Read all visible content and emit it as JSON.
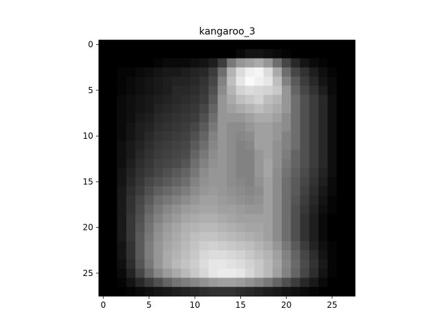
{
  "chart_data": {
    "type": "heatmap",
    "title": "kangaroo_3",
    "xlabel": "",
    "ylabel": "",
    "colormap": "gray",
    "grid": false,
    "rows": 28,
    "cols": 28,
    "x_ticks": [
      0,
      5,
      10,
      15,
      20,
      25
    ],
    "y_ticks": [
      0,
      5,
      10,
      15,
      20,
      25
    ],
    "x_tick_labels": [
      "0",
      "5",
      "10",
      "15",
      "20",
      "25"
    ],
    "y_tick_labels": [
      "0",
      "5",
      "10",
      "15",
      "20",
      "25"
    ],
    "xlim": [
      -0.5,
      27.5
    ],
    "ylim": [
      27.5,
      -0.5
    ],
    "value_range": [
      0,
      255
    ],
    "values": [
      [
        0,
        0,
        0,
        0,
        0,
        0,
        0,
        0,
        0,
        0,
        0,
        0,
        0,
        0,
        0,
        0,
        0,
        0,
        0,
        0,
        0,
        0,
        0,
        0,
        0,
        0,
        0,
        0
      ],
      [
        0,
        0,
        0,
        0,
        0,
        0,
        0,
        0,
        0,
        0,
        0,
        0,
        0,
        0,
        0,
        10,
        20,
        20,
        15,
        10,
        5,
        0,
        0,
        0,
        0,
        0,
        0,
        0
      ],
      [
        0,
        0,
        0,
        0,
        0,
        0,
        5,
        10,
        10,
        10,
        15,
        20,
        30,
        60,
        120,
        150,
        160,
        170,
        150,
        110,
        70,
        40,
        20,
        10,
        5,
        0,
        0,
        0
      ],
      [
        0,
        0,
        5,
        5,
        10,
        15,
        20,
        25,
        25,
        30,
        35,
        40,
        60,
        110,
        180,
        220,
        240,
        245,
        220,
        170,
        110,
        70,
        50,
        30,
        15,
        5,
        0,
        0
      ],
      [
        0,
        0,
        5,
        10,
        15,
        20,
        25,
        30,
        35,
        35,
        40,
        50,
        70,
        130,
        190,
        230,
        250,
        240,
        230,
        190,
        130,
        90,
        60,
        40,
        20,
        10,
        0,
        0
      ],
      [
        0,
        0,
        5,
        10,
        15,
        20,
        25,
        30,
        40,
        40,
        45,
        55,
        80,
        140,
        180,
        210,
        220,
        215,
        210,
        200,
        150,
        100,
        70,
        50,
        30,
        10,
        0,
        0
      ],
      [
        0,
        0,
        10,
        15,
        20,
        25,
        30,
        35,
        40,
        45,
        50,
        60,
        90,
        150,
        170,
        190,
        200,
        210,
        190,
        180,
        150,
        110,
        80,
        60,
        40,
        15,
        0,
        0
      ],
      [
        0,
        0,
        10,
        15,
        20,
        25,
        35,
        40,
        45,
        50,
        55,
        70,
        100,
        150,
        160,
        170,
        180,
        190,
        180,
        170,
        150,
        110,
        80,
        60,
        40,
        15,
        0,
        0
      ],
      [
        0,
        0,
        10,
        15,
        25,
        30,
        40,
        45,
        50,
        55,
        60,
        80,
        110,
        150,
        150,
        150,
        160,
        170,
        170,
        160,
        140,
        110,
        80,
        60,
        40,
        15,
        0,
        0
      ],
      [
        0,
        0,
        10,
        20,
        30,
        35,
        45,
        50,
        55,
        60,
        70,
        90,
        120,
        150,
        140,
        140,
        150,
        160,
        160,
        150,
        140,
        110,
        80,
        60,
        40,
        15,
        0,
        0
      ],
      [
        0,
        0,
        10,
        20,
        30,
        40,
        50,
        55,
        60,
        65,
        80,
        100,
        130,
        150,
        140,
        135,
        140,
        160,
        160,
        150,
        130,
        110,
        80,
        60,
        40,
        15,
        0,
        0
      ],
      [
        0,
        0,
        15,
        25,
        35,
        45,
        55,
        60,
        65,
        70,
        90,
        110,
        135,
        150,
        140,
        130,
        135,
        160,
        160,
        145,
        130,
        110,
        80,
        60,
        40,
        15,
        0,
        0
      ],
      [
        0,
        0,
        15,
        25,
        40,
        50,
        60,
        65,
        70,
        75,
        100,
        120,
        140,
        150,
        140,
        130,
        130,
        150,
        160,
        145,
        125,
        100,
        80,
        60,
        40,
        15,
        0,
        0
      ],
      [
        0,
        0,
        15,
        30,
        45,
        55,
        65,
        70,
        75,
        85,
        110,
        130,
        145,
        150,
        140,
        130,
        130,
        150,
        165,
        145,
        120,
        100,
        80,
        60,
        40,
        15,
        0,
        0
      ],
      [
        0,
        0,
        20,
        35,
        50,
        60,
        70,
        80,
        90,
        100,
        120,
        140,
        150,
        150,
        140,
        130,
        130,
        150,
        165,
        140,
        115,
        95,
        75,
        55,
        35,
        15,
        0,
        0
      ],
      [
        0,
        0,
        20,
        40,
        55,
        70,
        80,
        90,
        100,
        110,
        130,
        145,
        150,
        150,
        140,
        135,
        130,
        145,
        160,
        140,
        110,
        90,
        70,
        50,
        30,
        10,
        0,
        0
      ],
      [
        0,
        0,
        25,
        45,
        60,
        80,
        95,
        105,
        115,
        125,
        140,
        150,
        155,
        150,
        145,
        140,
        135,
        140,
        160,
        140,
        110,
        90,
        65,
        45,
        25,
        10,
        0,
        0
      ],
      [
        0,
        0,
        25,
        50,
        70,
        90,
        110,
        120,
        130,
        140,
        150,
        160,
        160,
        155,
        150,
        145,
        140,
        145,
        160,
        140,
        110,
        85,
        60,
        40,
        20,
        5,
        0,
        0
      ],
      [
        0,
        0,
        25,
        50,
        75,
        100,
        120,
        135,
        145,
        155,
        160,
        165,
        165,
        160,
        160,
        155,
        150,
        150,
        160,
        140,
        110,
        80,
        55,
        35,
        15,
        5,
        0,
        0
      ],
      [
        0,
        0,
        25,
        55,
        80,
        110,
        130,
        145,
        155,
        165,
        170,
        175,
        175,
        170,
        165,
        160,
        160,
        160,
        160,
        140,
        110,
        80,
        50,
        30,
        10,
        0,
        0,
        0
      ],
      [
        0,
        0,
        25,
        55,
        85,
        115,
        140,
        155,
        165,
        175,
        180,
        185,
        185,
        180,
        175,
        170,
        165,
        165,
        160,
        140,
        110,
        80,
        50,
        30,
        10,
        0,
        0,
        0
      ],
      [
        0,
        0,
        25,
        55,
        90,
        120,
        145,
        160,
        170,
        180,
        190,
        195,
        195,
        190,
        185,
        180,
        175,
        170,
        160,
        140,
        110,
        80,
        50,
        30,
        10,
        0,
        0,
        0
      ],
      [
        0,
        0,
        20,
        50,
        90,
        125,
        150,
        165,
        175,
        185,
        195,
        205,
        210,
        205,
        200,
        195,
        190,
        180,
        170,
        150,
        120,
        90,
        60,
        35,
        15,
        5,
        0,
        0
      ],
      [
        0,
        0,
        20,
        50,
        90,
        125,
        150,
        170,
        180,
        190,
        200,
        215,
        220,
        220,
        215,
        210,
        200,
        190,
        180,
        160,
        130,
        100,
        70,
        45,
        20,
        5,
        0,
        0
      ],
      [
        0,
        0,
        15,
        45,
        85,
        120,
        150,
        170,
        185,
        195,
        205,
        220,
        230,
        230,
        225,
        220,
        210,
        200,
        185,
        165,
        135,
        105,
        75,
        50,
        25,
        5,
        0,
        0
      ],
      [
        0,
        0,
        10,
        35,
        70,
        105,
        135,
        155,
        170,
        185,
        200,
        215,
        230,
        235,
        235,
        230,
        215,
        200,
        185,
        160,
        130,
        100,
        70,
        45,
        20,
        5,
        0,
        0
      ],
      [
        0,
        0,
        5,
        20,
        40,
        60,
        80,
        100,
        115,
        125,
        135,
        145,
        155,
        160,
        160,
        155,
        145,
        135,
        120,
        100,
        80,
        60,
        40,
        25,
        10,
        0,
        0,
        0
      ],
      [
        0,
        0,
        0,
        5,
        10,
        15,
        20,
        25,
        30,
        35,
        40,
        45,
        50,
        50,
        50,
        45,
        40,
        35,
        30,
        25,
        20,
        15,
        10,
        5,
        0,
        0,
        0,
        0
      ]
    ]
  }
}
